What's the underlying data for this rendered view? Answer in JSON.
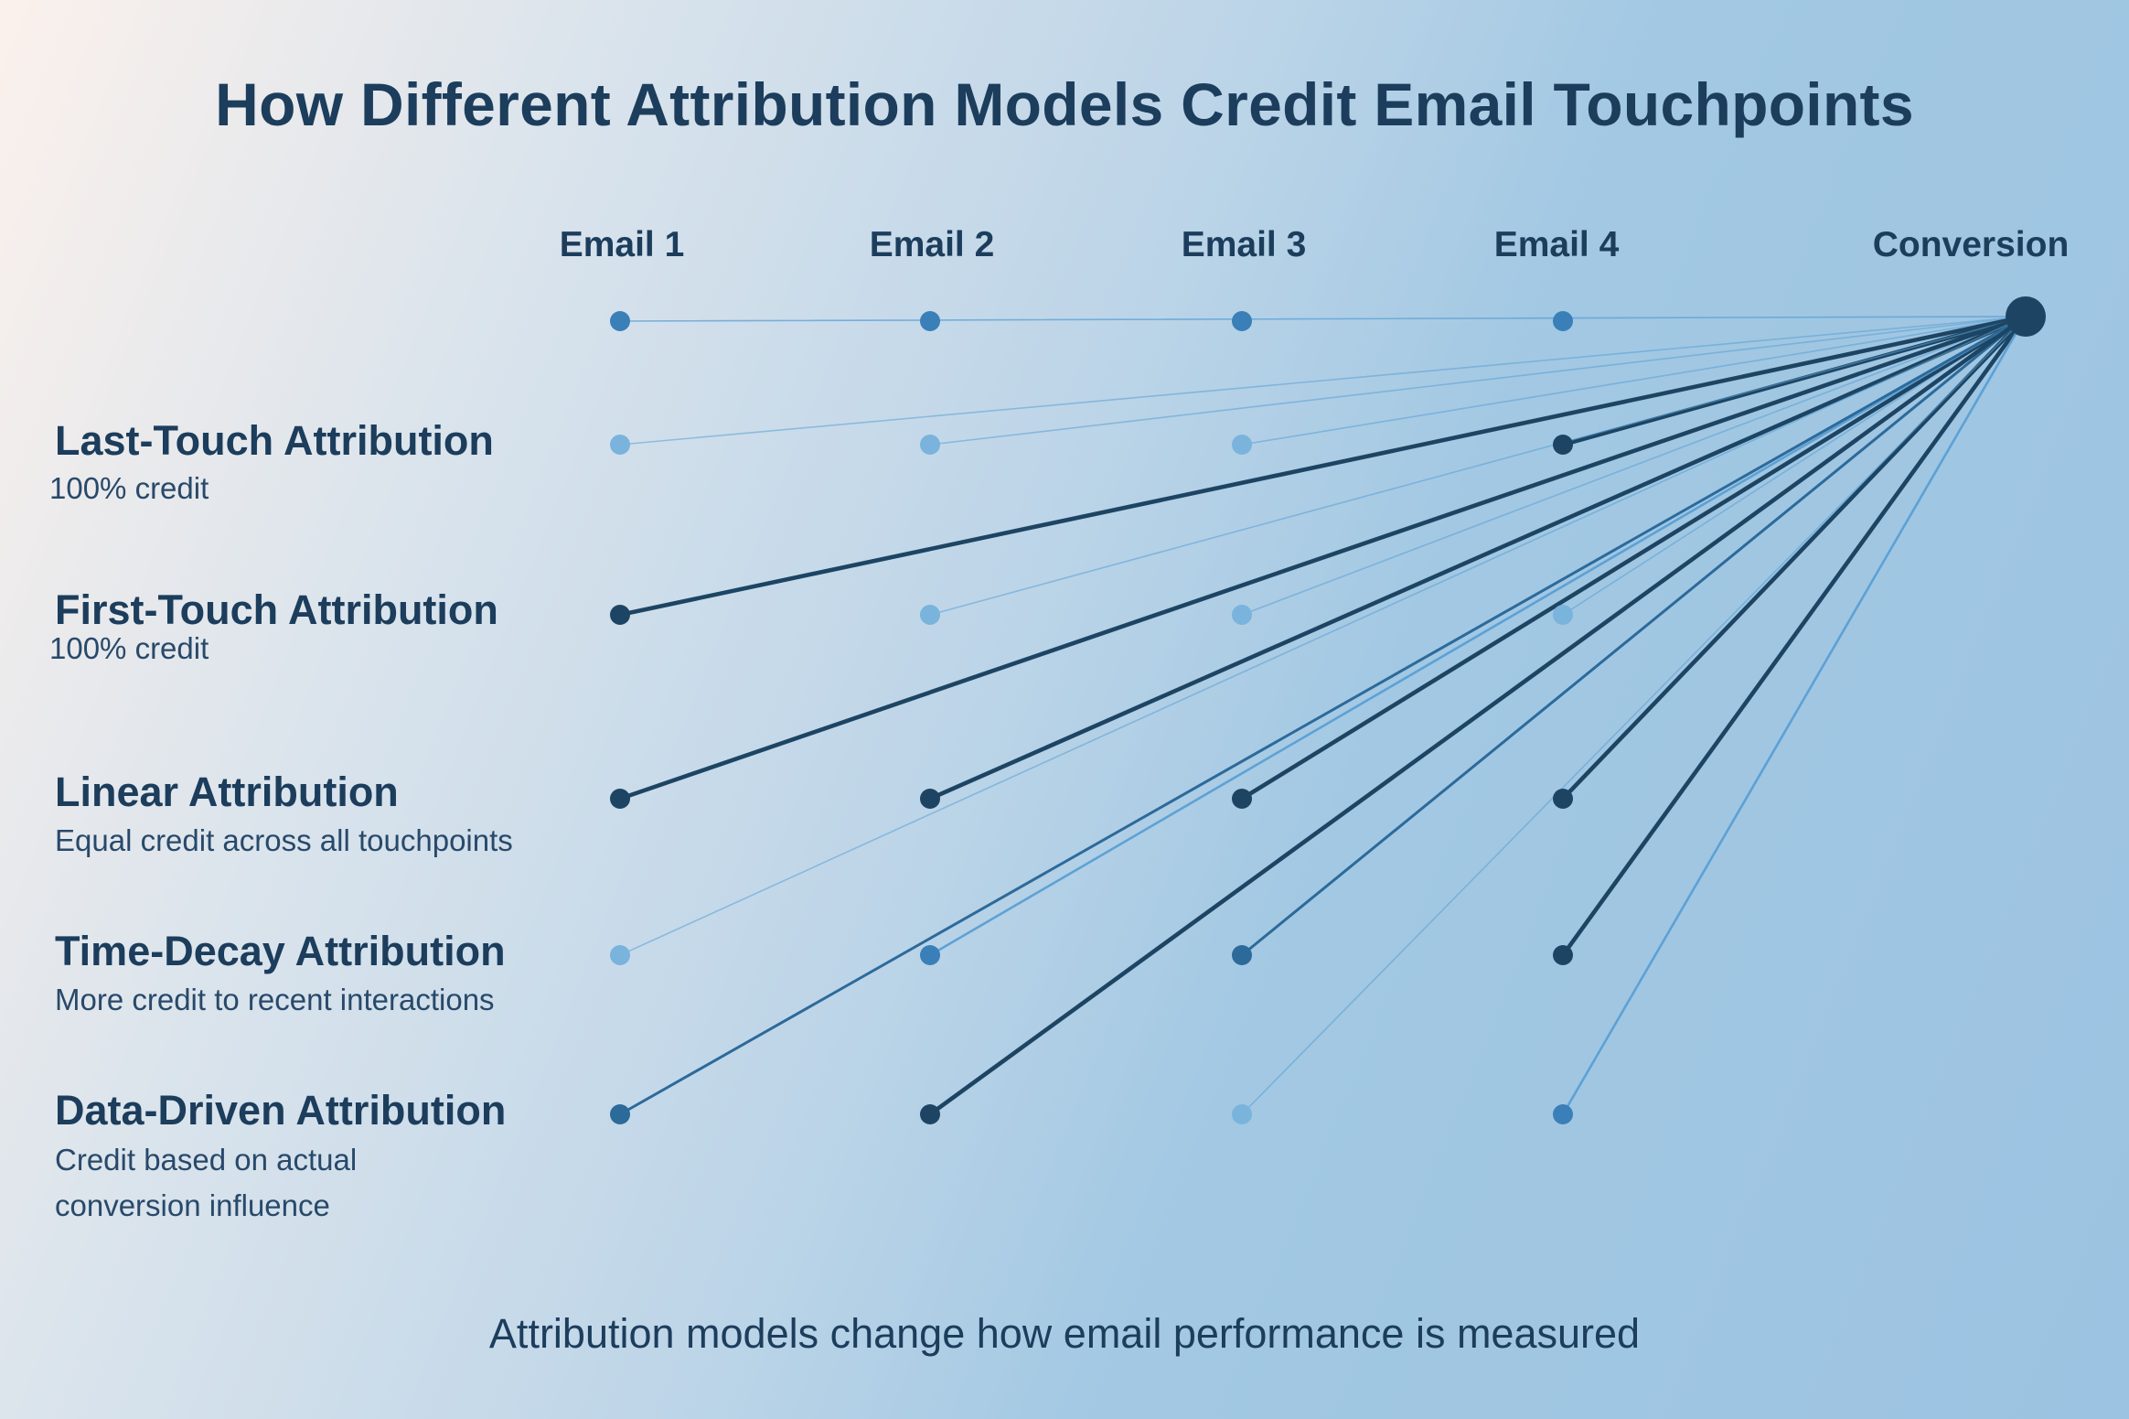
{
  "title": "How Different Attribution Models Credit Email Touchpoints",
  "columns": [
    "Email 1",
    "Email 2",
    "Email 3",
    "Email 4",
    "Conversion"
  ],
  "rows": [
    {
      "label": "Last-Touch Attribution",
      "description": "100% credit",
      "weights": [
        "none",
        "none",
        "none",
        "full"
      ]
    },
    {
      "label": "First-Touch Attribution",
      "description": "100% credit",
      "weights": [
        "full",
        "none",
        "none",
        "none"
      ]
    },
    {
      "label": "Linear Attribution",
      "description": "Equal credit across all touchpoints",
      "weights": [
        "full",
        "full",
        "full",
        "full"
      ]
    },
    {
      "label": "Time-Decay Attribution",
      "description": "More credit to recent interactions",
      "weights": [
        "none",
        "low",
        "medium",
        "high"
      ]
    },
    {
      "label": "Data-Driven Attribution",
      "description_lines": [
        "Credit based on actual",
        "conversion influence"
      ],
      "weights": [
        "medium",
        "high",
        "none",
        "low"
      ]
    }
  ],
  "footer": "Attribution models change how email performance is measured",
  "colors": {
    "title_text": "#1c3d5c",
    "node_dark": "#1d4563",
    "node_mid": "#2c6a9a",
    "node_blue": "#3a7fb8",
    "node_light": "#7ab3dc",
    "line_light": "#5a9fd4",
    "line_dark": "#1d4563"
  }
}
